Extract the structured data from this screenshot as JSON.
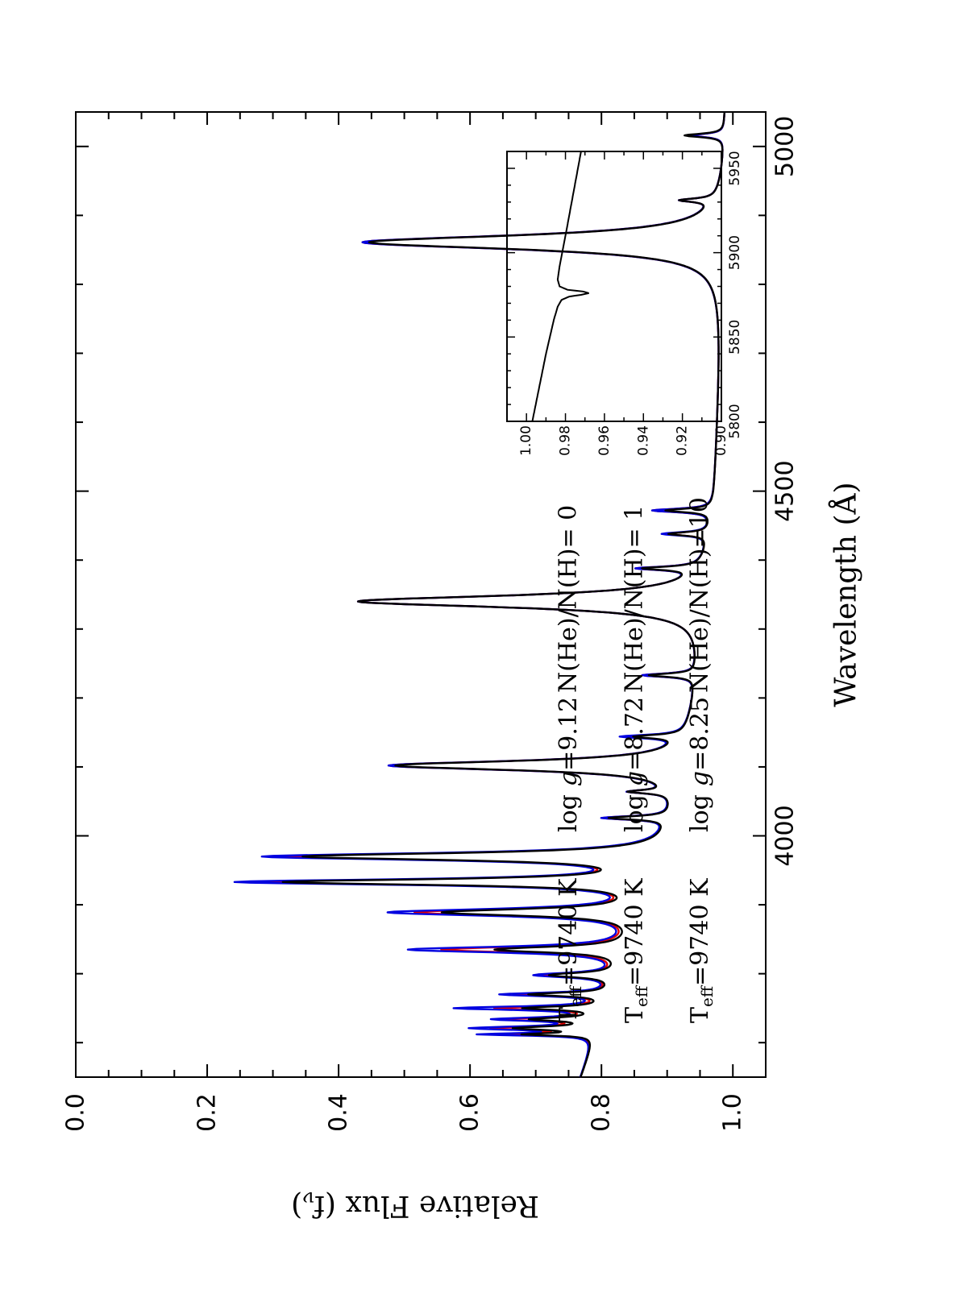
{
  "chart_data": [
    {
      "type": "line",
      "orientation": "rotated-90",
      "xlabel": "Wavelength (Å)",
      "ylabel": "Relative Flux (f",
      "ylabel_sub": "ν",
      "ylabel_close": ")",
      "xlim": [
        3650,
        5050
      ],
      "ylim": [
        0.0,
        1.05
      ],
      "x_ticks": [
        "4000",
        "4500",
        "5000"
      ],
      "y_ticks": [
        "0.0",
        "0.2",
        "0.4",
        "0.6",
        "0.8",
        "1.0"
      ],
      "legend": [
        {
          "teff_prefix": "T",
          "teff_sub": "eff",
          "teff_value": "=9740 K",
          "logg_prefix": "log",
          "logg_g": "g",
          "logg_value": "=9.12",
          "ratio": "N(He)/N(H)= 0",
          "color": "#000000"
        },
        {
          "teff_prefix": "T",
          "teff_sub": "eff",
          "teff_value": "=9740 K",
          "logg_prefix": "log",
          "logg_g": "g",
          "logg_value": "=8.72",
          "ratio": "N(He)/N(H)= 1",
          "color": "#e00000"
        },
        {
          "teff_prefix": "T",
          "teff_sub": "eff",
          "teff_value": "=9740 K",
          "logg_prefix": "log",
          "logg_g": "g",
          "logg_value": "=8.25",
          "ratio": "N(He)/N(H)=10",
          "color": "#0000e0"
        }
      ],
      "grid": false,
      "continuum": {
        "x": [
          3650,
          3700,
          3800,
          3900,
          4000,
          4100,
          4200,
          4300,
          4400,
          4500,
          4600,
          4700,
          4800,
          4900,
          5000,
          5050
        ],
        "y": [
          0.77,
          0.79,
          0.83,
          0.875,
          0.91,
          0.93,
          0.945,
          0.958,
          0.966,
          0.974,
          0.978,
          0.982,
          0.985,
          0.988,
          0.99,
          0.99
        ]
      },
      "series": [
        {
          "color": "#000000",
          "lines": [
            {
              "center": 3970,
              "depth": 0.54,
              "width": 6
            },
            {
              "center": 3933,
              "depth": 0.55,
              "width": 5
            },
            {
              "center": 3889,
              "depth": 0.3,
              "width": 6
            },
            {
              "center": 4102,
              "depth": 0.44,
              "width": 8
            },
            {
              "center": 4340,
              "depth": 0.53,
              "width": 10
            },
            {
              "center": 4861,
              "depth": 0.54,
              "width": 12
            },
            {
              "center": 3835,
              "depth": 0.2,
              "width": 5
            },
            {
              "center": 3798,
              "depth": 0.1,
              "width": 4
            },
            {
              "center": 3770,
              "depth": 0.12,
              "width": 3
            },
            {
              "center": 3750,
              "depth": 0.12,
              "width": 3
            },
            {
              "center": 3734,
              "depth": 0.1,
              "width": 3
            },
            {
              "center": 3721,
              "depth": 0.12,
              "width": 3
            },
            {
              "center": 3712,
              "depth": 0.1,
              "width": 2
            },
            {
              "center": 4026,
              "depth": 0.09,
              "width": 3
            },
            {
              "center": 4064,
              "depth": 0.06,
              "width": 3
            },
            {
              "center": 4144,
              "depth": 0.07,
              "width": 3
            },
            {
              "center": 4233,
              "depth": 0.07,
              "width": 3
            },
            {
              "center": 4388,
              "depth": 0.08,
              "width": 3
            },
            {
              "center": 4438,
              "depth": 0.06,
              "width": 3
            },
            {
              "center": 4472,
              "depth": 0.07,
              "width": 3
            },
            {
              "center": 4922,
              "depth": 0.05,
              "width": 3
            },
            {
              "center": 5016,
              "depth": 0.06,
              "width": 3
            }
          ]
        },
        {
          "color": "#e00000",
          "lines": [
            {
              "center": 3970,
              "depth": 0.57,
              "width": 6
            },
            {
              "center": 3933,
              "depth": 0.58,
              "width": 5
            },
            {
              "center": 3889,
              "depth": 0.34,
              "width": 6
            },
            {
              "center": 4102,
              "depth": 0.45,
              "width": 8
            },
            {
              "center": 4340,
              "depth": 0.53,
              "width": 10
            },
            {
              "center": 4861,
              "depth": 0.55,
              "width": 12
            },
            {
              "center": 3835,
              "depth": 0.28,
              "width": 5
            },
            {
              "center": 3798,
              "depth": 0.11,
              "width": 4
            },
            {
              "center": 3770,
              "depth": 0.14,
              "width": 3
            },
            {
              "center": 3750,
              "depth": 0.16,
              "width": 3
            },
            {
              "center": 3734,
              "depth": 0.13,
              "width": 3
            },
            {
              "center": 3721,
              "depth": 0.15,
              "width": 3
            },
            {
              "center": 3712,
              "depth": 0.13,
              "width": 2
            },
            {
              "center": 4026,
              "depth": 0.1,
              "width": 3
            },
            {
              "center": 4064,
              "depth": 0.06,
              "width": 3
            },
            {
              "center": 4144,
              "depth": 0.08,
              "width": 3
            },
            {
              "center": 4233,
              "depth": 0.08,
              "width": 3
            },
            {
              "center": 4388,
              "depth": 0.09,
              "width": 3
            },
            {
              "center": 4438,
              "depth": 0.06,
              "width": 3
            },
            {
              "center": 4472,
              "depth": 0.09,
              "width": 3
            },
            {
              "center": 4922,
              "depth": 0.05,
              "width": 3
            },
            {
              "center": 5016,
              "depth": 0.05,
              "width": 3
            }
          ]
        },
        {
          "color": "#0000e0",
          "lines": [
            {
              "center": 3970,
              "depth": 0.6,
              "width": 6
            },
            {
              "center": 3933,
              "depth": 0.62,
              "width": 5
            },
            {
              "center": 3889,
              "depth": 0.38,
              "width": 6
            },
            {
              "center": 4102,
              "depth": 0.45,
              "width": 8
            },
            {
              "center": 4340,
              "depth": 0.53,
              "width": 10
            },
            {
              "center": 4861,
              "depth": 0.55,
              "width": 12
            },
            {
              "center": 3835,
              "depth": 0.33,
              "width": 5
            },
            {
              "center": 3798,
              "depth": 0.12,
              "width": 4
            },
            {
              "center": 3770,
              "depth": 0.16,
              "width": 3
            },
            {
              "center": 3750,
              "depth": 0.22,
              "width": 3
            },
            {
              "center": 3734,
              "depth": 0.15,
              "width": 3
            },
            {
              "center": 3721,
              "depth": 0.18,
              "width": 3
            },
            {
              "center": 3712,
              "depth": 0.16,
              "width": 2
            },
            {
              "center": 4026,
              "depth": 0.1,
              "width": 3
            },
            {
              "center": 4064,
              "depth": 0.06,
              "width": 3
            },
            {
              "center": 4144,
              "depth": 0.09,
              "width": 3
            },
            {
              "center": 4233,
              "depth": 0.08,
              "width": 3
            },
            {
              "center": 4388,
              "depth": 0.09,
              "width": 3
            },
            {
              "center": 4438,
              "depth": 0.07,
              "width": 3
            },
            {
              "center": 4472,
              "depth": 0.09,
              "width": 3
            },
            {
              "center": 4922,
              "depth": 0.05,
              "width": 3
            },
            {
              "center": 5016,
              "depth": 0.05,
              "width": 3
            }
          ]
        }
      ]
    },
    {
      "type": "line",
      "orientation": "rotated-90",
      "inset": true,
      "xlim": [
        5800,
        5960
      ],
      "ylim": [
        0.9,
        1.01
      ],
      "x_ticks": [
        "5800",
        "5850",
        "5900",
        "5950"
      ],
      "y_ticks": [
        "0.90",
        "0.92",
        "0.94",
        "0.96",
        "0.98",
        "1.00"
      ],
      "series": [
        {
          "color": "#000000",
          "x": [
            5800,
            5840,
            5860,
            5868,
            5872,
            5874,
            5875,
            5876,
            5877,
            5878,
            5880,
            5884,
            5892,
            5910,
            5935,
            5960
          ],
          "y": [
            0.997,
            0.99,
            0.986,
            0.984,
            0.982,
            0.978,
            0.972,
            0.968,
            0.971,
            0.979,
            0.983,
            0.984,
            0.983,
            0.98,
            0.976,
            0.972
          ]
        }
      ]
    }
  ]
}
